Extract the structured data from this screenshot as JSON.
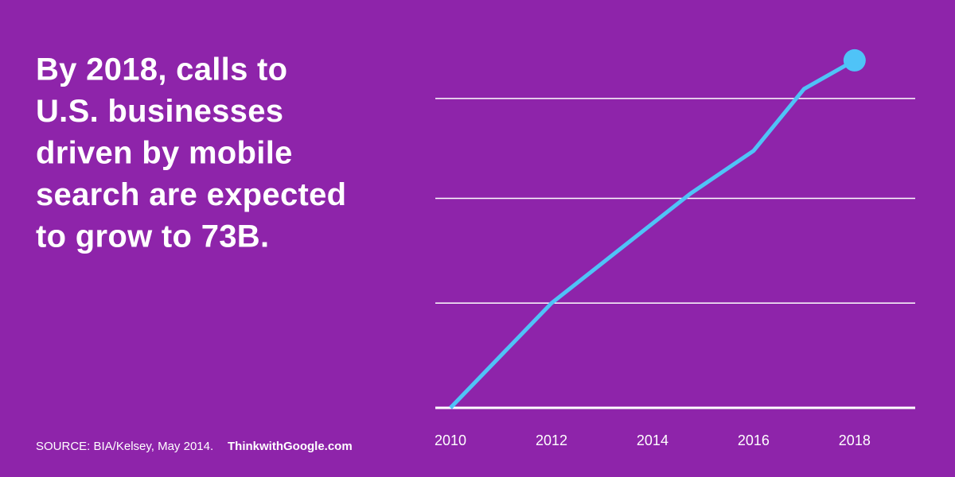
{
  "headline": [
    "By 2018, calls to",
    "U.S. businesses",
    "driven by mobile",
    "search are expected",
    "to grow to 73B."
  ],
  "footer": {
    "source": "SOURCE: BIA/Kelsey, May 2014.",
    "brand": "ThinkwithGoogle.com"
  },
  "chart_data": {
    "type": "line",
    "x": [
      2010,
      2012,
      2014.75,
      2016,
      2017,
      2018
    ],
    "series": [
      {
        "color": "#4fc3f7",
        "values": [
          0,
          22,
          45,
          54,
          67,
          73
        ]
      }
    ],
    "xlim": [
      2009.7,
      2019.2
    ],
    "xticks": [
      2010,
      2012,
      2014,
      2016,
      2018
    ],
    "ylim": [
      0,
      79
    ],
    "gridlines": [
      22,
      44,
      65
    ],
    "background": "#8e24aa",
    "grid_color": "#ffffff",
    "end_marker": true
  }
}
